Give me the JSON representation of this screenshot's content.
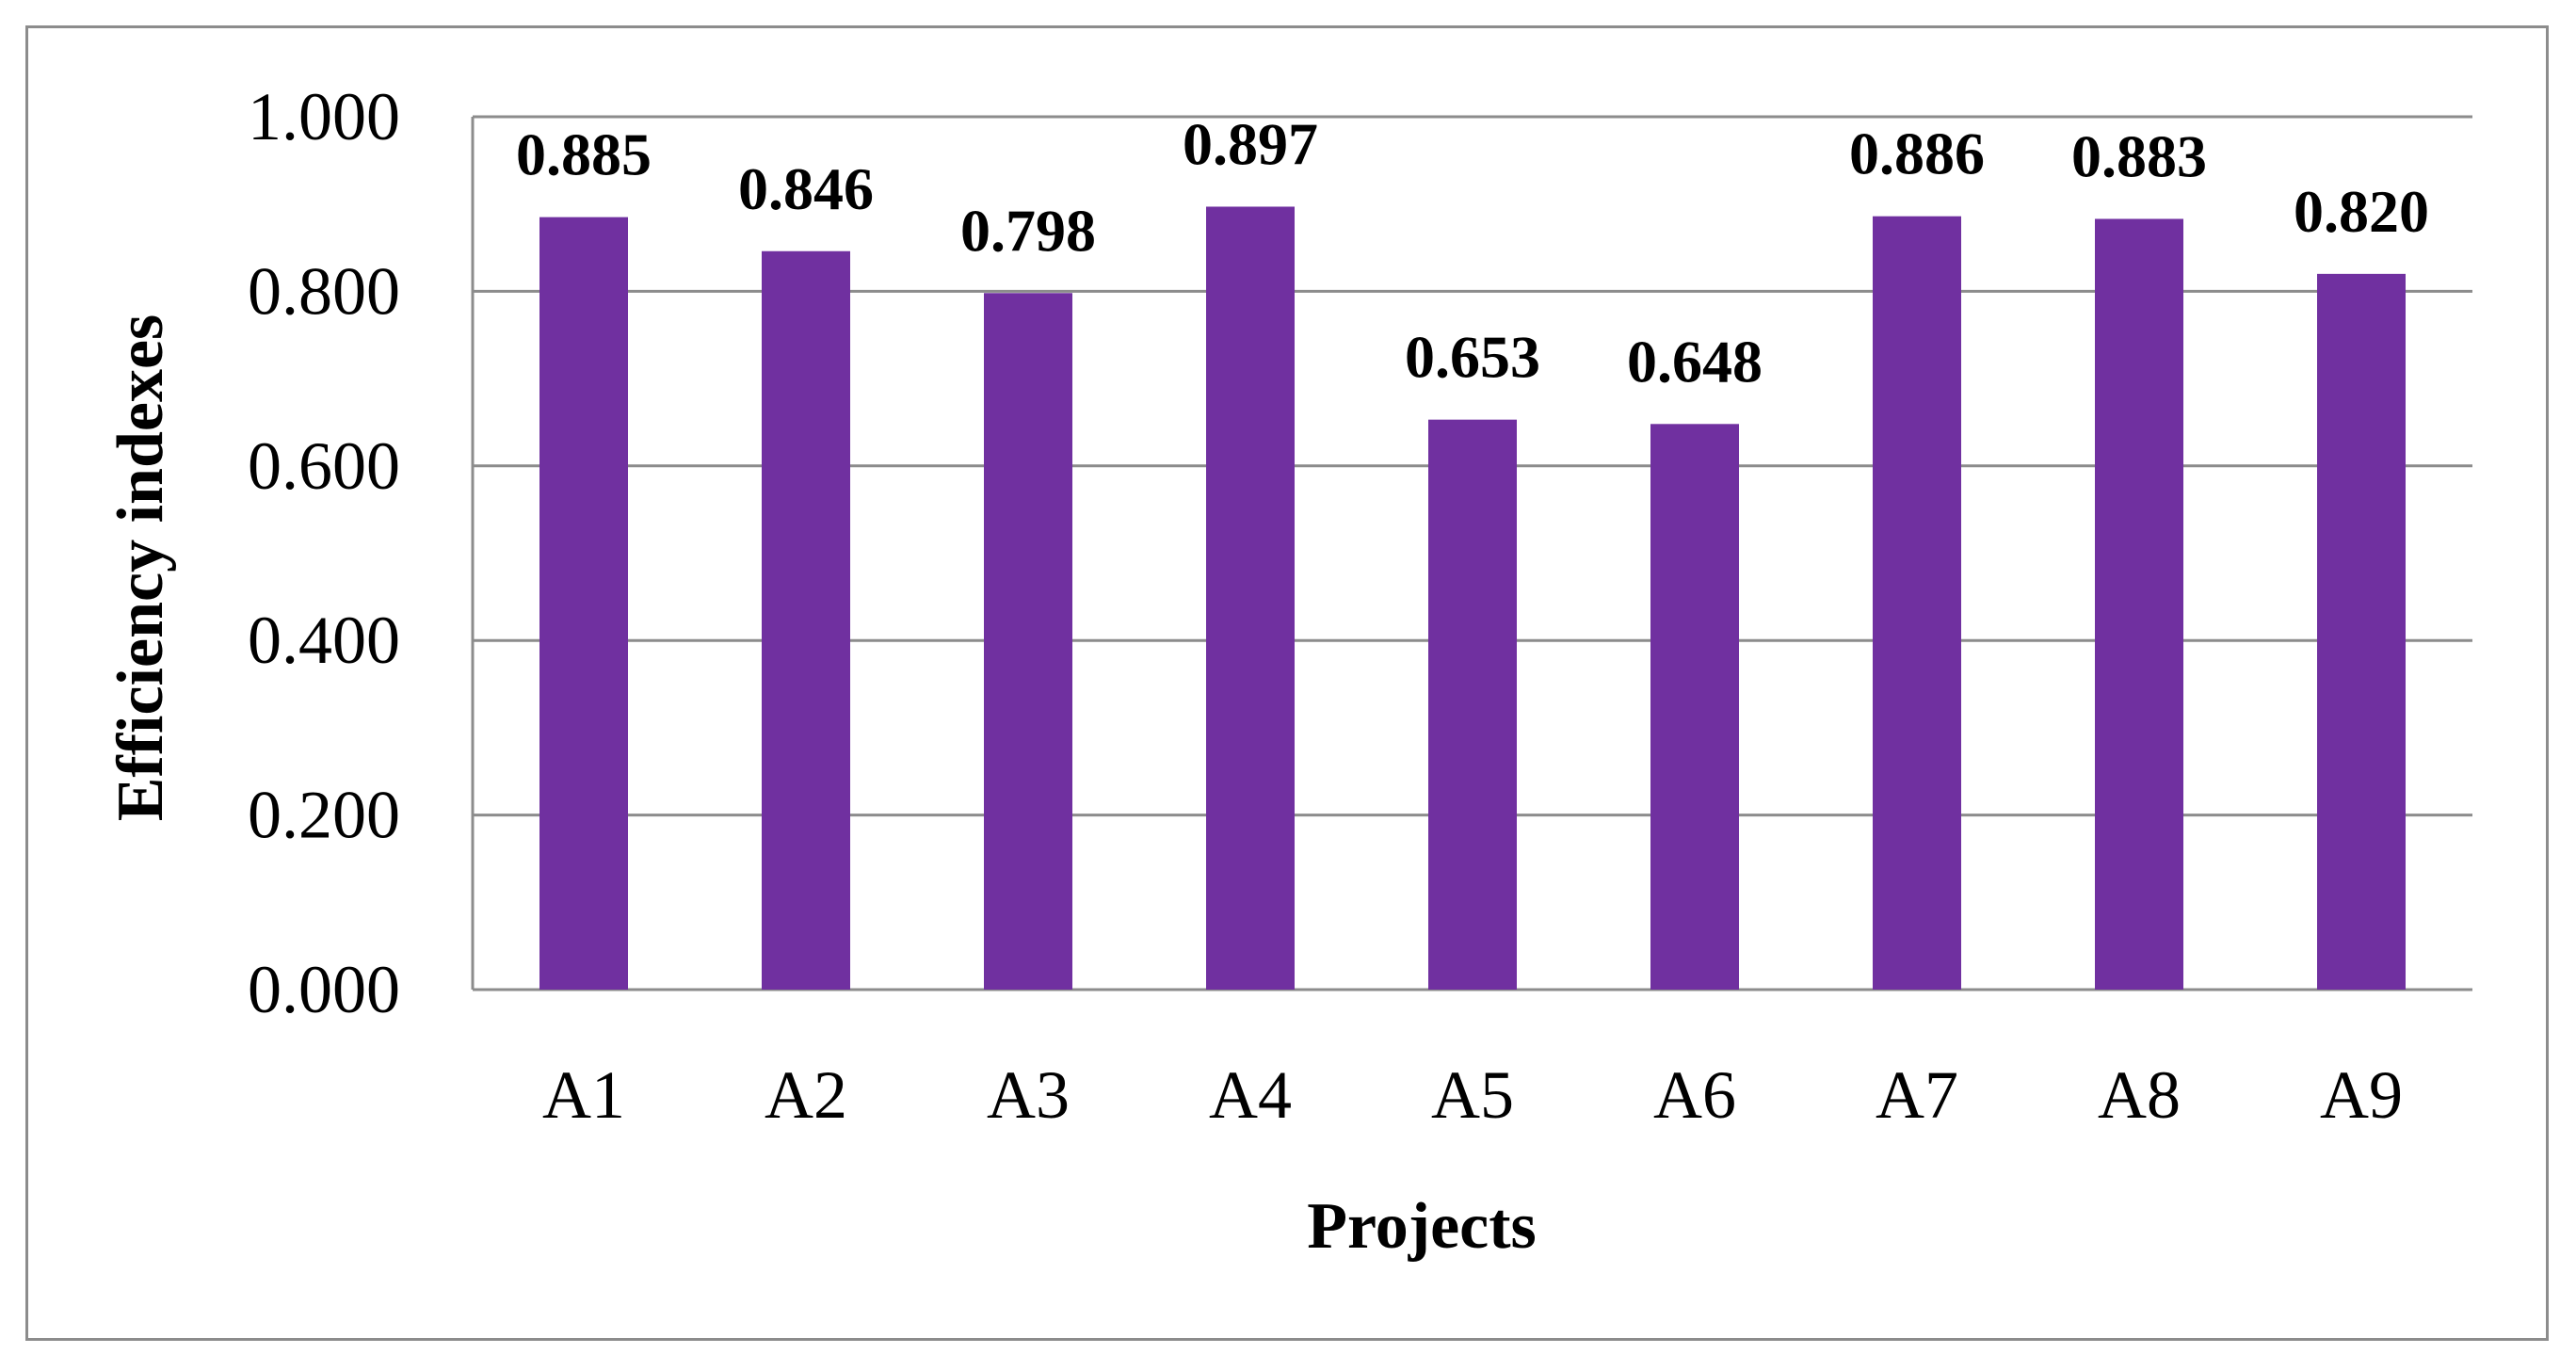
{
  "chart_data": {
    "type": "bar",
    "title": "",
    "xlabel": "Projects",
    "ylabel": "Efficiency indexes",
    "categories": [
      "A1",
      "A2",
      "A3",
      "A4",
      "A5",
      "A6",
      "A7",
      "A8",
      "A9"
    ],
    "values": [
      0.885,
      0.846,
      0.798,
      0.897,
      0.653,
      0.648,
      0.886,
      0.883,
      0.82
    ],
    "value_labels": [
      "0.885",
      "0.846",
      "0.798",
      "0.897",
      "0.653",
      "0.648",
      "0.886",
      "0.883",
      "0.820"
    ],
    "ylim": [
      0,
      1.0
    ],
    "yticks": [
      0,
      0.2,
      0.4,
      0.6,
      0.8,
      1.0
    ],
    "ytick_labels": [
      "0.000",
      "0.200",
      "0.400",
      "0.600",
      "0.800",
      "1.000"
    ],
    "grid": true,
    "legend": "none",
    "bar_color": "#7030A0",
    "grid_color": "#8c8c8c"
  }
}
